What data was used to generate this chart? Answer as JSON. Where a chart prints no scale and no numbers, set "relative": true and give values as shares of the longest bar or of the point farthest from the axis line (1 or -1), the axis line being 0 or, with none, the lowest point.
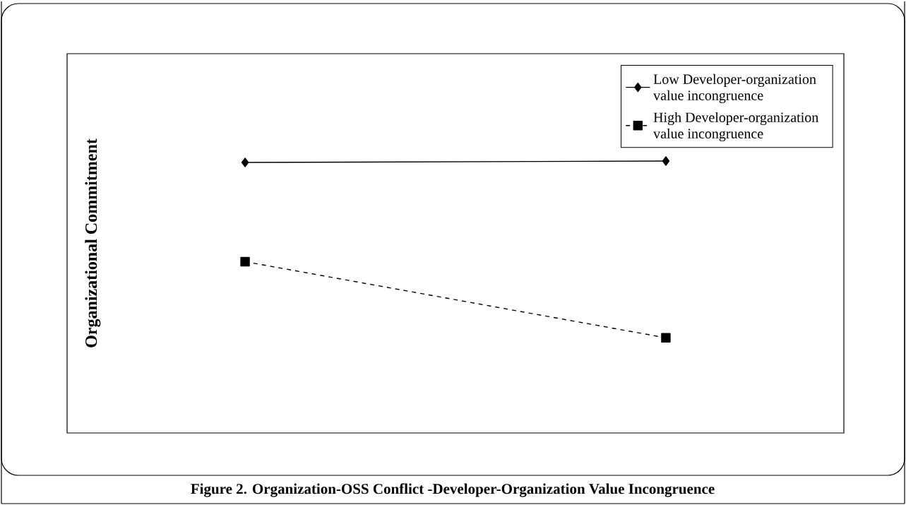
{
  "chart_data": {
    "type": "line",
    "relative": true,
    "ylabel": "Organizational Commitment",
    "categories": [
      null,
      null
    ],
    "series": [
      {
        "name": "Low Developer-organization value incongruence",
        "color": "#000000",
        "marker": "diamond",
        "line_style": "solid",
        "values": [
          0.995,
          1.0
        ]
      },
      {
        "name": "High Developer-organization value incongruence",
        "color": "#000000",
        "marker": "square",
        "line_style": "dashed",
        "values": [
          0.63,
          0.35
        ]
      }
    ],
    "legend": "top right",
    "annotations": [
      "Figure 2. Organization-OSS Conflict -Developer-Organization Value Incongruence"
    ]
  }
}
